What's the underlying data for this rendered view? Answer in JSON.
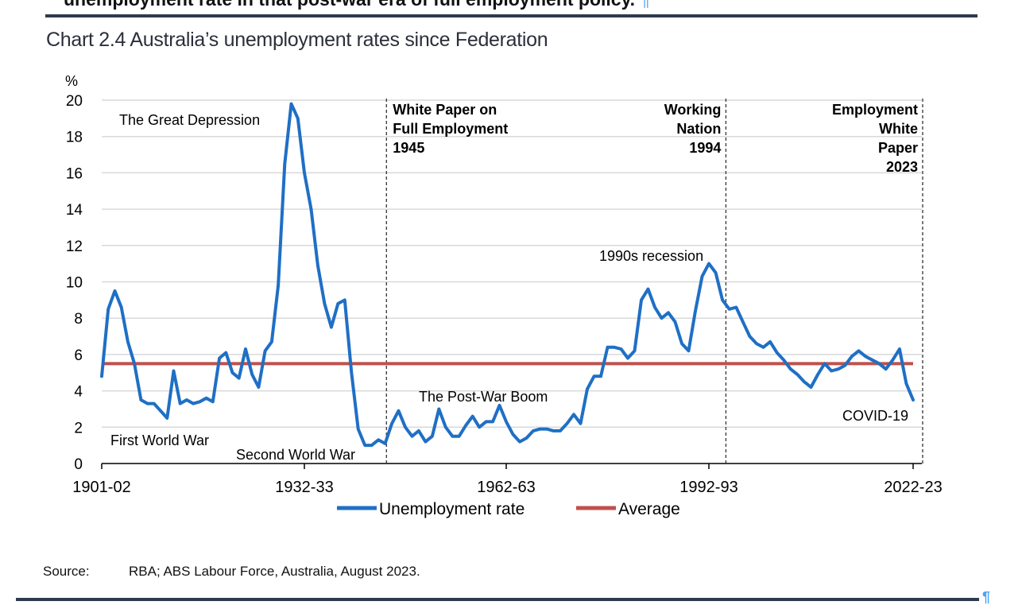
{
  "document": {
    "preceding_text": "unemployment rate in that post-war era of full employment policy.",
    "pilcrow": "¶",
    "source_label": "Source:",
    "source_text": "RBA; ABS Labour Force, Australia, August 2023."
  },
  "chart_data": {
    "type": "line",
    "title": "Chart 2.4 Australia’s unemployment rates since Federation",
    "ylabel": "%",
    "xlabel": "",
    "ylim": [
      0,
      20
    ],
    "yticks": [
      0,
      2,
      4,
      6,
      8,
      10,
      12,
      14,
      16,
      18,
      20
    ],
    "xticks": [
      {
        "year": 1901,
        "label": "1901-02"
      },
      {
        "year": 1932,
        "label": "1932-33"
      },
      {
        "year": 1962,
        "label": "1962-63"
      },
      {
        "year": 1992,
        "label": "1992-93"
      },
      {
        "year": 2022,
        "label": "2022-23"
      }
    ],
    "grid": true,
    "legend_position": "bottom",
    "first_year": 1901,
    "series": [
      {
        "name": "Unemployment rate",
        "color": "#1f6fc5",
        "values": [
          4.8,
          8.5,
          9.5,
          8.6,
          6.7,
          5.5,
          3.5,
          3.3,
          3.3,
          2.9,
          2.5,
          5.1,
          3.3,
          3.5,
          3.3,
          3.4,
          3.6,
          3.4,
          5.8,
          6.1,
          5.0,
          4.7,
          6.3,
          4.9,
          4.2,
          6.2,
          6.7,
          9.8,
          16.5,
          19.8,
          19.0,
          16.0,
          14.0,
          10.9,
          8.8,
          7.5,
          8.8,
          9.0,
          5.0,
          1.9,
          1.0,
          1.0,
          1.3,
          1.1,
          2.2,
          2.9,
          2.0,
          1.5,
          1.8,
          1.2,
          1.5,
          3.0,
          2.0,
          1.5,
          1.5,
          2.1,
          2.6,
          2.0,
          2.3,
          2.3,
          3.2,
          2.3,
          1.6,
          1.2,
          1.4,
          1.8,
          1.9,
          1.9,
          1.8,
          1.8,
          2.2,
          2.7,
          2.2,
          4.1,
          4.8,
          4.8,
          6.4,
          6.4,
          6.3,
          5.8,
          6.2,
          9.0,
          9.6,
          8.6,
          8.0,
          8.3,
          7.8,
          6.6,
          6.2,
          8.4,
          10.3,
          11.0,
          10.5,
          9.0,
          8.5,
          8.6,
          7.8,
          7.0,
          6.6,
          6.4,
          6.7,
          6.1,
          5.7,
          5.2,
          4.9,
          4.5,
          4.2,
          4.9,
          5.5,
          5.1,
          5.2,
          5.4,
          5.9,
          6.2,
          5.9,
          5.7,
          5.5,
          5.2,
          5.7,
          6.3,
          4.4,
          3.5
        ]
      },
      {
        "name": "Average",
        "color": "#c0504d",
        "constant": 5.5
      }
    ],
    "vertical_markers": [
      {
        "year": 1944.2,
        "lines": [
          "White Paper on",
          "Full Employment",
          "1945"
        ],
        "align": "left"
      },
      {
        "year": 1994.5,
        "lines": [
          "Working",
          "Nation",
          "1994"
        ],
        "align": "right"
      },
      {
        "year": 2023.4,
        "lines": [
          "Employment",
          "White",
          "Paper",
          "2023"
        ],
        "align": "right"
      }
    ],
    "annotations": [
      {
        "text": "The Great Depression"
      },
      {
        "text": "First World War"
      },
      {
        "text": "Second World War"
      },
      {
        "text": "The Post-War Boom"
      },
      {
        "text": "1990s recession"
      },
      {
        "text": "COVID-19"
      }
    ]
  }
}
